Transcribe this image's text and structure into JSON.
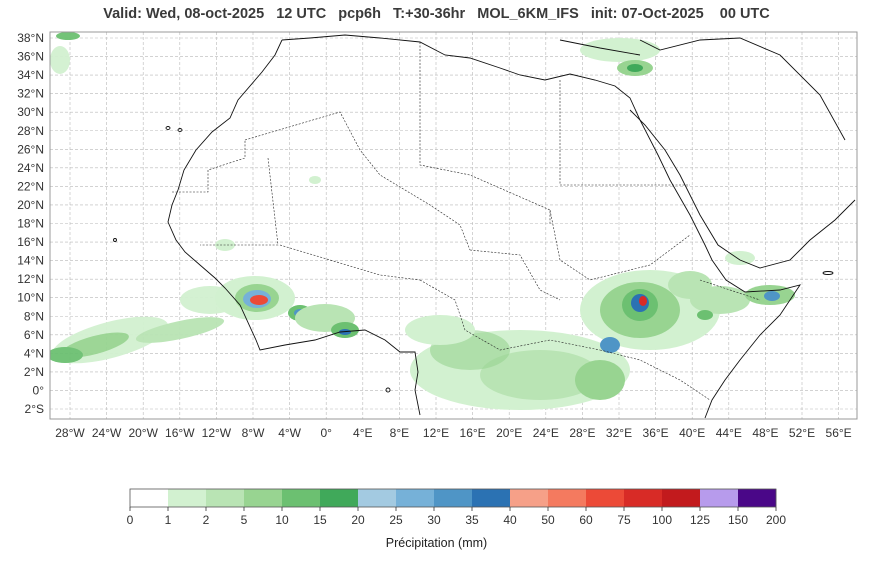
{
  "title": "Valid: Wed, 08-oct-2025   12 UTC   pcp6h   T:+30-36hr   MOL_6KM_IFS   init: 07-Oct-2025    00 UTC",
  "map": {
    "lat_labels": [
      "38°N",
      "36°N",
      "34°N",
      "32°N",
      "30°N",
      "28°N",
      "26°N",
      "24°N",
      "22°N",
      "20°N",
      "18°N",
      "16°N",
      "14°N",
      "12°N",
      "10°N",
      "8°N",
      "6°N",
      "4°N",
      "2°N",
      "0°",
      "2°S"
    ],
    "lon_labels": [
      "28°W",
      "24°W",
      "20°W",
      "16°W",
      "12°W",
      "8°W",
      "4°W",
      "0°",
      "4°E",
      "8°E",
      "12°E",
      "16°E",
      "20°E",
      "24°E",
      "28°E",
      "32°E",
      "36°E",
      "40°E",
      "44°E",
      "48°E",
      "52°E",
      "56°E"
    ]
  },
  "colorbar": {
    "title": "Précipitation (mm)",
    "ticks": [
      "0",
      "1",
      "2",
      "5",
      "10",
      "15",
      "20",
      "25",
      "30",
      "35",
      "40",
      "50",
      "60",
      "75",
      "100",
      "125",
      "150",
      "200"
    ],
    "colors": [
      "#ffffff",
      "#d2f1d0",
      "#b9e4b4",
      "#98d491",
      "#6cc071",
      "#40a95a",
      "#a3cae1",
      "#76b1d8",
      "#4f95c6",
      "#2b72b3",
      "#f6a088",
      "#f47a5f",
      "#ec4a37",
      "#d82b26",
      "#c21a1d",
      "#b79bec",
      "#4a0788"
    ]
  }
}
